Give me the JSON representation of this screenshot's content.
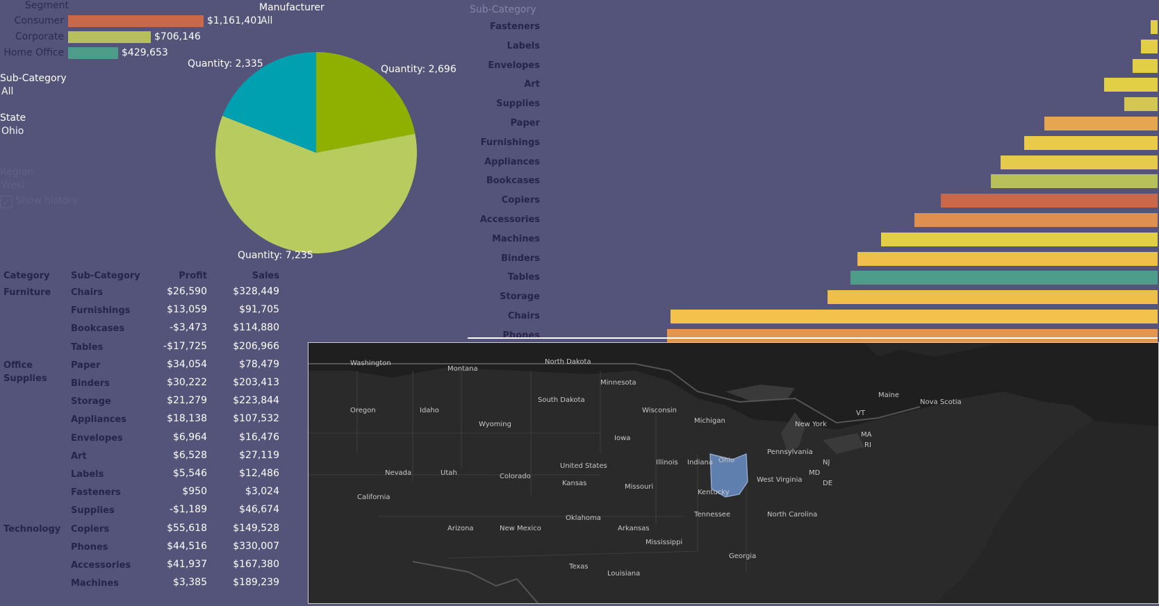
{
  "segment": {
    "title": "Segment",
    "items": [
      {
        "label": "Consumer",
        "value": "$1,161,401",
        "amount": 1161401,
        "color": "#c9694a"
      },
      {
        "label": "Corporate",
        "value": "$706,146",
        "amount": 706146,
        "color": "#b5c05c"
      },
      {
        "label": "Home Office",
        "value": "$429,653",
        "amount": 429653,
        "color": "#4e9c8a"
      }
    ]
  },
  "filters": {
    "manufacturer_title": "Manufacturer",
    "manufacturer_value": "All",
    "subcategory_title": "Sub-Category",
    "subcategory_value": "All",
    "state_title": "State",
    "state_value": "Ohio",
    "region_title": "Region",
    "region_value": "West",
    "show_history": "Show history"
  },
  "pie": {
    "slices": [
      {
        "label": "Quantity: 2,696",
        "value": 2696,
        "color": "#8fb000"
      },
      {
        "label": "Quantity: 7,235",
        "value": 7235,
        "color": "#b8cb5e"
      },
      {
        "label": "Quantity: 2,335",
        "value": 2335,
        "color": "#00a0b0"
      }
    ]
  },
  "table": {
    "headers": [
      "Category",
      "Sub-Category",
      "Profit",
      "Sales"
    ],
    "groups": [
      {
        "category": "Furniture",
        "rows": [
          {
            "sub": "Chairs",
            "profit": "$26,590",
            "sales": "$328,449"
          },
          {
            "sub": "Furnishings",
            "profit": "$13,059",
            "sales": "$91,705"
          },
          {
            "sub": "Bookcases",
            "profit": "-$3,473",
            "sales": "$114,880"
          },
          {
            "sub": "Tables",
            "profit": "-$17,725",
            "sales": "$206,966"
          }
        ]
      },
      {
        "category": "Office Supplies",
        "rows": [
          {
            "sub": "Paper",
            "profit": "$34,054",
            "sales": "$78,479"
          },
          {
            "sub": "Binders",
            "profit": "$30,222",
            "sales": "$203,413"
          },
          {
            "sub": "Storage",
            "profit": "$21,279",
            "sales": "$223,844"
          },
          {
            "sub": "Appliances",
            "profit": "$18,138",
            "sales": "$107,532"
          },
          {
            "sub": "Envelopes",
            "profit": "$6,964",
            "sales": "$16,476"
          },
          {
            "sub": "Art",
            "profit": "$6,528",
            "sales": "$27,119"
          },
          {
            "sub": "Labels",
            "profit": "$5,546",
            "sales": "$12,486"
          },
          {
            "sub": "Fasteners",
            "profit": "$950",
            "sales": "$3,024"
          },
          {
            "sub": "Supplies",
            "profit": "-$1,189",
            "sales": "$46,674"
          }
        ]
      },
      {
        "category": "Technology",
        "rows": [
          {
            "sub": "Copiers",
            "profit": "$55,618",
            "sales": "$149,528"
          },
          {
            "sub": "Phones",
            "profit": "$44,516",
            "sales": "$330,007"
          },
          {
            "sub": "Accessories",
            "profit": "$41,937",
            "sales": "$167,380"
          },
          {
            "sub": "Machines",
            "profit": "$3,385",
            "sales": "$189,239"
          }
        ]
      }
    ]
  },
  "subcat_bars": {
    "title": "Sub-Category",
    "items": [
      {
        "label": "Fasteners",
        "fraction": 0.021,
        "color": "#e2cf45"
      },
      {
        "label": "Labels",
        "fraction": 0.049,
        "color": "#e2cf45"
      },
      {
        "label": "Envelopes",
        "fraction": 0.075,
        "color": "#e2cf45"
      },
      {
        "label": "Art",
        "fraction": 0.16,
        "color": "#e2cf45"
      },
      {
        "label": "Supplies",
        "fraction": 0.1,
        "color": "#d3c652"
      },
      {
        "label": "Paper",
        "fraction": 0.34,
        "color": "#e6a64f"
      },
      {
        "label": "Furnishings",
        "fraction": 0.4,
        "color": "#e9ca49"
      },
      {
        "label": "Appliances",
        "fraction": 0.47,
        "color": "#e6ca4b"
      },
      {
        "label": "Bookcases",
        "fraction": 0.5,
        "color": "#b8c05a"
      },
      {
        "label": "Copiers",
        "fraction": 0.65,
        "color": "#c9694a"
      },
      {
        "label": "Accessories",
        "fraction": 0.73,
        "color": "#df8f4e"
      },
      {
        "label": "Machines",
        "fraction": 0.83,
        "color": "#e2cf45"
      },
      {
        "label": "Binders",
        "fraction": 0.9,
        "color": "#efbf4b"
      },
      {
        "label": "Tables",
        "fraction": 0.92,
        "color": "#4e9c8a"
      },
      {
        "label": "Storage",
        "fraction": 0.99,
        "color": "#efbf4b"
      },
      {
        "label": "Chairs",
        "fraction": 1.46,
        "color": "#f2c24d"
      },
      {
        "label": "Phones",
        "fraction": 1.47,
        "color": "#e3964d"
      }
    ]
  },
  "map": {
    "highlight_state": "Ohio",
    "highlight_color": "#5f7fae",
    "labels": [
      "Washington",
      "Montana",
      "North Dakota",
      "Minnesota",
      "South Dakota",
      "Wisconsin",
      "Michigan",
      "Oregon",
      "Idaho",
      "Wyoming",
      "Iowa",
      "Illinois",
      "Indiana",
      "Ohio",
      "Pennsylvania",
      "New York",
      "Nevada",
      "Utah",
      "Colorado",
      "United States",
      "Kansas",
      "Missouri",
      "Kentucky",
      "West Virginia",
      "California",
      "Arizona",
      "New Mexico",
      "Oklahoma",
      "Arkansas",
      "Tennessee",
      "North Carolina",
      "Mississippi",
      "Georgia",
      "Texas",
      "Louisiana",
      "Maine",
      "Nova Scotia",
      "VT",
      "MA",
      "RI",
      "NJ",
      "MD",
      "DE"
    ]
  }
}
